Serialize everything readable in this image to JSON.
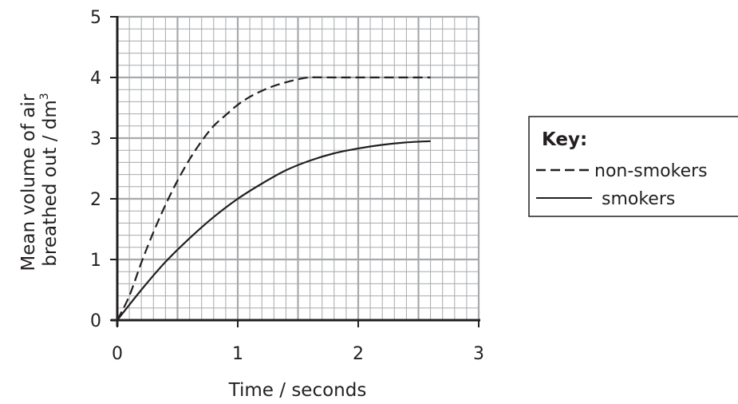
{
  "chart_data": {
    "type": "line",
    "xlabel": "Time / seconds",
    "ylabel": [
      "Mean volume of air",
      "breathed out / dm",
      "3"
    ],
    "xlim": [
      0,
      3
    ],
    "ylim": [
      0,
      5
    ],
    "xticks": [
      "0",
      "1",
      "2",
      "3"
    ],
    "yticks": [
      "0",
      "1",
      "2",
      "3",
      "4",
      "5"
    ],
    "grid": true,
    "legend_position": "right",
    "legend_title": "Key:",
    "series": [
      {
        "name": "non-smokers",
        "style": "dashed",
        "x": [
          0,
          0.1,
          0.2,
          0.3,
          0.4,
          0.5,
          0.6,
          0.7,
          0.8,
          0.9,
          1.0,
          1.1,
          1.2,
          1.3,
          1.4,
          1.5,
          1.6,
          1.8,
          2.0,
          2.2,
          2.4,
          2.6
        ],
        "y": [
          0,
          0.4,
          0.95,
          1.45,
          1.9,
          2.3,
          2.65,
          2.95,
          3.2,
          3.38,
          3.55,
          3.68,
          3.78,
          3.86,
          3.92,
          3.97,
          4.0,
          4.0,
          4.0,
          4.0,
          4.0,
          4.0
        ]
      },
      {
        "name": "smokers",
        "style": "solid",
        "x": [
          0,
          0.2,
          0.4,
          0.6,
          0.8,
          1.0,
          1.2,
          1.4,
          1.6,
          1.8,
          2.0,
          2.2,
          2.4,
          2.6
        ],
        "y": [
          0,
          0.5,
          0.96,
          1.35,
          1.7,
          2.0,
          2.25,
          2.47,
          2.63,
          2.75,
          2.83,
          2.89,
          2.93,
          2.95
        ]
      }
    ]
  },
  "colors": {
    "ink": "#231f20",
    "grid": "#a7a9ac",
    "background": "#ffffff"
  }
}
